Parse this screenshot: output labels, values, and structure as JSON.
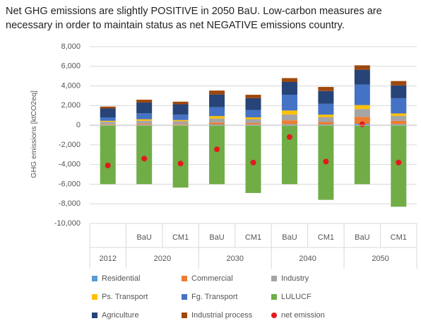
{
  "chart_data": {
    "type": "stacked_bar",
    "title": "Net GHG emissions are slightly POSITIVE in 2050 BaU.  Low-carbon measures are necessary in order to maintain status as net NEGATIVE emissions country.",
    "y_label": "GHG emissions [ktCO2eq]",
    "categories": [
      null,
      "BaU",
      "CM1",
      "BaU",
      "CM1",
      "BaU",
      "CM1",
      "BaU",
      "CM1"
    ],
    "groups": [
      "2012",
      "2020",
      "2030",
      "2040",
      "2050"
    ],
    "series": [
      {
        "name": "Residential",
        "color": "#5b9bd5",
        "values": [
          50,
          60,
          50,
          80,
          70,
          100,
          80,
          150,
          100
        ]
      },
      {
        "name": "Commercial",
        "color": "#ed7d31",
        "values": [
          50,
          100,
          80,
          200,
          150,
          400,
          250,
          700,
          350
        ]
      },
      {
        "name": "Industry",
        "color": "#a5a5a5",
        "values": [
          250,
          300,
          280,
          400,
          400,
          600,
          500,
          800,
          500
        ]
      },
      {
        "name": "Ps. Transport",
        "color": "#ffc000",
        "values": [
          100,
          150,
          120,
          250,
          180,
          400,
          250,
          400,
          250
        ]
      },
      {
        "name": "Fg. Transport",
        "color": "#4472c4",
        "values": [
          350,
          600,
          550,
          900,
          750,
          1600,
          1100,
          2100,
          1550
        ]
      },
      {
        "name": "LULUCF",
        "color": "#70ad47",
        "values": [
          -6000,
          -6000,
          -6350,
          -6000,
          -6900,
          -6000,
          -7600,
          -6000,
          -8300
        ]
      },
      {
        "name": "Agriculture",
        "color": "#264478",
        "values": [
          900,
          1100,
          1050,
          1300,
          1200,
          1300,
          1300,
          1500,
          1300
        ]
      },
      {
        "name": "Industrial process",
        "color": "#9e480e",
        "values": [
          200,
          290,
          270,
          400,
          350,
          400,
          420,
          450,
          450
        ]
      }
    ],
    "net": {
      "name": "net emission",
      "color": "#e31a1c",
      "values": [
        -4100,
        -3400,
        -3900,
        -2450,
        -3800,
        -1200,
        -3700,
        100,
        -3800
      ]
    },
    "ylim": [
      -10000,
      8000
    ],
    "yticks": [
      {
        "value": -10000,
        "label": "-10,000"
      },
      {
        "value": -8000,
        "label": "-8,000"
      },
      {
        "value": -6000,
        "label": "-6,000"
      },
      {
        "value": -4000,
        "label": "-4,000"
      },
      {
        "value": -2000,
        "label": "-2,000"
      },
      0,
      {
        "value": 2000,
        "label": "2,000"
      },
      {
        "value": 4000,
        "label": "4,000"
      },
      {
        "value": 6000,
        "label": "6,000"
      },
      {
        "value": 8000,
        "label": "8,000"
      }
    ],
    "grid": true
  }
}
